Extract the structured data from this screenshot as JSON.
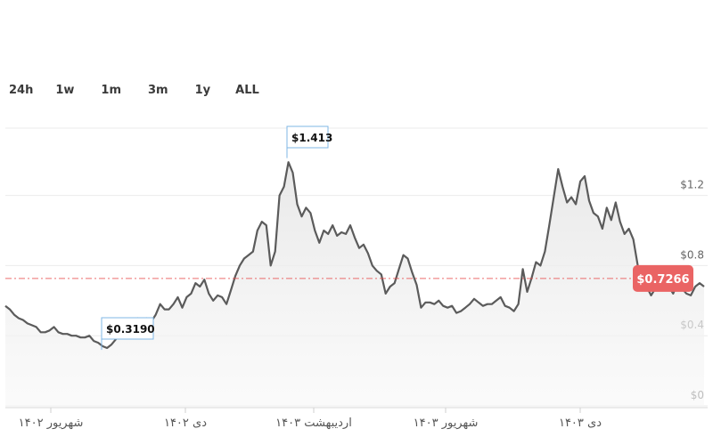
{
  "range_tabs": [
    "24h",
    "1w",
    "1m",
    "3m",
    "1y",
    "ALL"
  ],
  "chart_data": {
    "type": "area",
    "y_ticks": [
      {
        "value": 0,
        "label": "$0"
      },
      {
        "value": 0.4,
        "label": "$0.4"
      },
      {
        "value": 0.8,
        "label": "$0.8"
      },
      {
        "value": 1.2,
        "label": "$1.2"
      }
    ],
    "ylim": [
      0,
      1.6
    ],
    "x_ticks": [
      {
        "date": "1402-06-01",
        "label": "شهریور ۱۴۰۲"
      },
      {
        "date": "1402-10-01",
        "label": "دی ۱۴۰۲"
      },
      {
        "date": "1403-02-01",
        "label": "اردیبهشت ۱۴۰۳"
      },
      {
        "date": "1403-06-01",
        "label": "شهریور ۱۴۰۳"
      },
      {
        "date": "1403-10-01",
        "label": "دی ۱۴۰۳"
      }
    ],
    "grid": true,
    "reference_line": {
      "value": 0.7266,
      "label": "$0.7266",
      "color": "#e84a4a"
    },
    "annotations": [
      {
        "label": "$1.413",
        "value": 1.413,
        "kind": "max"
      },
      {
        "label": "$0.3190",
        "value": 0.319,
        "kind": "min"
      }
    ],
    "line_color": "#5b5b5b",
    "series": [
      {
        "points": [
          [
            0,
            0.57
          ],
          [
            5,
            0.55
          ],
          [
            10,
            0.52
          ],
          [
            15,
            0.5
          ],
          [
            20,
            0.49
          ],
          [
            25,
            0.47
          ],
          [
            30,
            0.46
          ],
          [
            35,
            0.45
          ],
          [
            40,
            0.42
          ],
          [
            45,
            0.42
          ],
          [
            50,
            0.43
          ],
          [
            55,
            0.45
          ],
          [
            60,
            0.42
          ],
          [
            65,
            0.41
          ],
          [
            70,
            0.41
          ],
          [
            75,
            0.4
          ],
          [
            80,
            0.4
          ],
          [
            85,
            0.39
          ],
          [
            90,
            0.39
          ],
          [
            95,
            0.4
          ],
          [
            100,
            0.37
          ],
          [
            105,
            0.36
          ],
          [
            110,
            0.34
          ],
          [
            115,
            0.33
          ],
          [
            120,
            0.35
          ],
          [
            125,
            0.38
          ],
          [
            130,
            0.42
          ],
          [
            135,
            0.43
          ],
          [
            140,
            0.46
          ],
          [
            145,
            0.47
          ],
          [
            150,
            0.5
          ],
          [
            155,
            0.48
          ],
          [
            160,
            0.5
          ],
          [
            165,
            0.48
          ],
          [
            170,
            0.52
          ],
          [
            175,
            0.58
          ],
          [
            180,
            0.55
          ],
          [
            185,
            0.55
          ],
          [
            190,
            0.58
          ],
          [
            195,
            0.62
          ],
          [
            200,
            0.56
          ],
          [
            205,
            0.62
          ],
          [
            210,
            0.64
          ],
          [
            215,
            0.7
          ],
          [
            220,
            0.68
          ],
          [
            225,
            0.72
          ],
          [
            230,
            0.64
          ],
          [
            235,
            0.6
          ],
          [
            240,
            0.63
          ],
          [
            245,
            0.62
          ],
          [
            250,
            0.58
          ],
          [
            255,
            0.66
          ],
          [
            260,
            0.74
          ],
          [
            265,
            0.8
          ],
          [
            270,
            0.84
          ],
          [
            275,
            0.86
          ],
          [
            280,
            0.88
          ],
          [
            285,
            1.0
          ],
          [
            290,
            1.05
          ],
          [
            295,
            1.03
          ],
          [
            300,
            0.8
          ],
          [
            305,
            0.88
          ],
          [
            310,
            1.2
          ],
          [
            315,
            1.25
          ],
          [
            320,
            1.39
          ],
          [
            325,
            1.33
          ],
          [
            330,
            1.15
          ],
          [
            335,
            1.08
          ],
          [
            340,
            1.13
          ],
          [
            345,
            1.1
          ],
          [
            350,
            1.0
          ],
          [
            355,
            0.93
          ],
          [
            360,
            1.0
          ],
          [
            365,
            0.98
          ],
          [
            370,
            1.03
          ],
          [
            375,
            0.97
          ],
          [
            380,
            0.99
          ],
          [
            385,
            0.98
          ],
          [
            390,
            1.03
          ],
          [
            395,
            0.96
          ],
          [
            400,
            0.9
          ],
          [
            405,
            0.92
          ],
          [
            410,
            0.87
          ],
          [
            415,
            0.8
          ],
          [
            420,
            0.77
          ],
          [
            425,
            0.75
          ],
          [
            430,
            0.64
          ],
          [
            435,
            0.68
          ],
          [
            440,
            0.7
          ],
          [
            445,
            0.78
          ],
          [
            450,
            0.86
          ],
          [
            455,
            0.84
          ],
          [
            460,
            0.76
          ],
          [
            465,
            0.69
          ],
          [
            470,
            0.56
          ],
          [
            475,
            0.59
          ],
          [
            480,
            0.59
          ],
          [
            485,
            0.58
          ],
          [
            490,
            0.6
          ],
          [
            495,
            0.57
          ],
          [
            500,
            0.56
          ],
          [
            505,
            0.57
          ],
          [
            510,
            0.53
          ],
          [
            515,
            0.54
          ],
          [
            520,
            0.56
          ],
          [
            525,
            0.58
          ],
          [
            530,
            0.61
          ],
          [
            535,
            0.59
          ],
          [
            540,
            0.57
          ],
          [
            545,
            0.58
          ],
          [
            550,
            0.58
          ],
          [
            555,
            0.6
          ],
          [
            560,
            0.62
          ],
          [
            565,
            0.57
          ],
          [
            570,
            0.56
          ],
          [
            575,
            0.54
          ],
          [
            580,
            0.58
          ],
          [
            585,
            0.78
          ],
          [
            590,
            0.65
          ],
          [
            595,
            0.73
          ],
          [
            600,
            0.82
          ],
          [
            605,
            0.8
          ],
          [
            610,
            0.88
          ],
          [
            615,
            1.03
          ],
          [
            620,
            1.19
          ],
          [
            625,
            1.35
          ],
          [
            630,
            1.25
          ],
          [
            635,
            1.16
          ],
          [
            640,
            1.19
          ],
          [
            645,
            1.15
          ],
          [
            650,
            1.28
          ],
          [
            655,
            1.31
          ],
          [
            660,
            1.17
          ],
          [
            665,
            1.1
          ],
          [
            670,
            1.08
          ],
          [
            675,
            1.01
          ],
          [
            680,
            1.13
          ],
          [
            685,
            1.06
          ],
          [
            690,
            1.16
          ],
          [
            695,
            1.05
          ],
          [
            700,
            0.98
          ],
          [
            705,
            1.01
          ],
          [
            710,
            0.95
          ],
          [
            715,
            0.8
          ],
          [
            720,
            0.71
          ],
          [
            725,
            0.68
          ],
          [
            730,
            0.63
          ],
          [
            735,
            0.67
          ],
          [
            740,
            0.69
          ],
          [
            745,
            0.73
          ],
          [
            750,
            0.68
          ],
          [
            755,
            0.64
          ],
          [
            760,
            0.7
          ],
          [
            765,
            0.67
          ],
          [
            770,
            0.64
          ],
          [
            775,
            0.63
          ],
          [
            780,
            0.68
          ],
          [
            785,
            0.7
          ],
          [
            790,
            0.68
          ]
        ]
      }
    ]
  }
}
